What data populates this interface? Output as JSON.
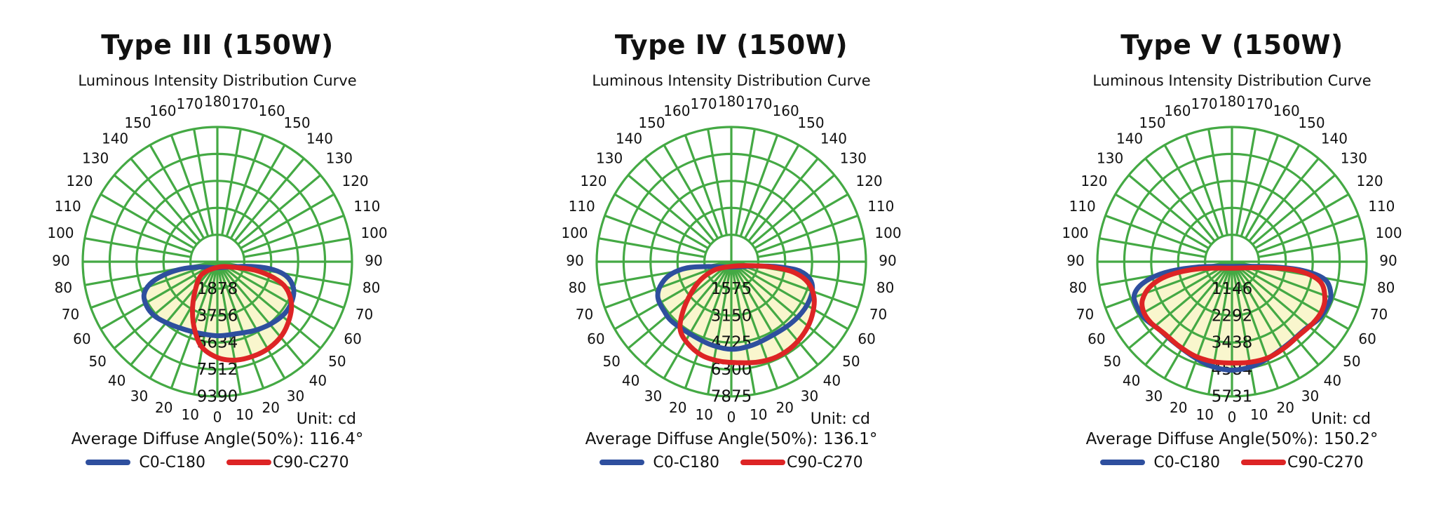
{
  "style": {
    "background": "#FFFFFF",
    "grid_color": "#44A944",
    "fill_color": "#F9F6CD",
    "text_color": "#111111",
    "blue": "#2E4F9E",
    "red": "#DD2425"
  },
  "angle_labels_deg": [
    0,
    10,
    20,
    30,
    40,
    50,
    60,
    70,
    80,
    90,
    100,
    110,
    120,
    130,
    140,
    150,
    160,
    170,
    180
  ],
  "ring_fractions": [
    0.2,
    0.4,
    0.6,
    0.8,
    1.0
  ],
  "chart_data": [
    {
      "type": "polar",
      "title": "Type III (150W)",
      "subtitle": "Luminous Intensity Distribution Curve",
      "unit_label": "Unit: cd",
      "avg_label": "Average Diffuse Angle(50%): 116.4°",
      "unit": "cd",
      "max_cd": 9390,
      "ring_values": [
        "1878",
        "3756",
        "5634",
        "7512",
        "9390"
      ],
      "series": [
        {
          "name": "C0-C180",
          "color": "#2E4F9E",
          "samples": {
            "angles_deg": [
              -90,
              -75,
              -60,
              -45,
              -30,
              -15,
              0,
              15,
              30,
              45,
              60,
              75,
              90
            ],
            "cd": [
              1100,
              5200,
              5600,
              5450,
              5300,
              5150,
              5150,
              5200,
              5350,
              5550,
              5750,
              5350,
              1100
            ]
          },
          "outline": [
            [
              0.0,
              0.045
            ],
            [
              -0.14,
              0.04
            ],
            [
              -0.27,
              0.055
            ],
            [
              -0.4,
              0.1
            ],
            [
              -0.5,
              0.165
            ],
            [
              -0.545,
              0.245
            ],
            [
              -0.525,
              0.33
            ],
            [
              -0.47,
              0.4
            ],
            [
              -0.385,
              0.45
            ],
            [
              -0.27,
              0.495
            ],
            [
              -0.14,
              0.53
            ],
            [
              0.0,
              0.55
            ],
            [
              0.14,
              0.535
            ],
            [
              0.28,
              0.51
            ],
            [
              0.4,
              0.46
            ],
            [
              0.5,
              0.385
            ],
            [
              0.555,
              0.29
            ],
            [
              0.565,
              0.195
            ],
            [
              0.51,
              0.105
            ],
            [
              0.39,
              0.052
            ],
            [
              0.24,
              0.035
            ],
            [
              0.11,
              0.038
            ]
          ]
        },
        {
          "name": "C90-C270",
          "color": "#DD2425",
          "samples": {
            "angles_deg": [
              -90,
              -75,
              -60,
              -45,
              -30,
              -15,
              0,
              15,
              30,
              45,
              60,
              75,
              90
            ],
            "cd": [
              380,
              850,
              1130,
              1970,
              3380,
              5160,
              6670,
              6950,
              6950,
              6570,
              5820,
              3380,
              560
            ]
          },
          "outline": [
            [
              0.01,
              0.04
            ],
            [
              -0.115,
              0.095
            ],
            [
              -0.165,
              0.215
            ],
            [
              -0.185,
              0.37
            ],
            [
              -0.165,
              0.52
            ],
            [
              -0.11,
              0.64
            ],
            [
              0.01,
              0.715
            ],
            [
              0.14,
              0.73
            ],
            [
              0.27,
              0.7
            ],
            [
              0.385,
              0.64
            ],
            [
              0.48,
              0.545
            ],
            [
              0.535,
              0.425
            ],
            [
              0.55,
              0.31
            ],
            [
              0.51,
              0.195
            ],
            [
              0.42,
              0.12
            ],
            [
              0.275,
              0.062
            ],
            [
              0.13,
              0.042
            ]
          ]
        }
      ]
    },
    {
      "type": "polar",
      "title": "Type IV (150W)",
      "subtitle": "Luminous Intensity Distribution Curve",
      "unit_label": "Unit: cd",
      "avg_label": "Average Diffuse Angle(50%): 136.1°",
      "unit": "cd",
      "max_cd": 7875,
      "ring_values": [
        "1575",
        "3150",
        "4725",
        "6300",
        "7875"
      ],
      "series": [
        {
          "name": "C0-C180",
          "color": "#2E4F9E",
          "samples": {
            "angles_deg": [
              -90,
              -75,
              -60,
              -45,
              -30,
              -15,
              0,
              15,
              30,
              45,
              60,
              75,
              90
            ],
            "cd": [
              790,
              4700,
              5040,
              4960,
              4880,
              4960,
              5120,
              4880,
              4880,
              4960,
              5040,
              4800,
              790
            ]
          },
          "outline": [
            [
              0.0,
              0.04
            ],
            [
              -0.17,
              0.036
            ],
            [
              -0.33,
              0.046
            ],
            [
              -0.46,
              0.1
            ],
            [
              -0.53,
              0.185
            ],
            [
              -0.545,
              0.27
            ],
            [
              -0.5,
              0.365
            ],
            [
              -0.44,
              0.445
            ],
            [
              -0.3,
              0.54
            ],
            [
              -0.155,
              0.615
            ],
            [
              0.0,
              0.65
            ],
            [
              0.155,
              0.62
            ],
            [
              0.3,
              0.55
            ],
            [
              0.44,
              0.46
            ],
            [
              0.545,
              0.35
            ],
            [
              0.6,
              0.225
            ],
            [
              0.585,
              0.13
            ],
            [
              0.5,
              0.066
            ],
            [
              0.35,
              0.038
            ],
            [
              0.17,
              0.032
            ]
          ]
        },
        {
          "name": "C90-C270",
          "color": "#DD2425",
          "samples": {
            "angles_deg": [
              -90,
              -75,
              -60,
              -45,
              -30,
              -15,
              0,
              15,
              30,
              45,
              60,
              75,
              90
            ],
            "cd": [
              320,
              950,
              1970,
              3540,
              4880,
              5750,
              5670,
              6140,
              6220,
              6060,
              5430,
              4330,
              550
            ]
          },
          "outline": [
            [
              0.0,
              0.035
            ],
            [
              -0.125,
              0.062
            ],
            [
              -0.225,
              0.132
            ],
            [
              -0.3,
              0.235
            ],
            [
              -0.36,
              0.37
            ],
            [
              -0.38,
              0.5
            ],
            [
              -0.33,
              0.6
            ],
            [
              -0.22,
              0.695
            ],
            [
              -0.08,
              0.74
            ],
            [
              0.06,
              0.75
            ],
            [
              0.2,
              0.745
            ],
            [
              0.34,
              0.705
            ],
            [
              0.46,
              0.625
            ],
            [
              0.55,
              0.515
            ],
            [
              0.6,
              0.4
            ],
            [
              0.615,
              0.27
            ],
            [
              0.57,
              0.155
            ],
            [
              0.47,
              0.082
            ],
            [
              0.33,
              0.044
            ],
            [
              0.16,
              0.03
            ]
          ]
        }
      ]
    },
    {
      "type": "polar",
      "title": "Type V (150W)",
      "subtitle": "Luminous Intensity Distribution Curve",
      "unit_label": "Unit: cd",
      "avg_label": "Average Diffuse Angle(50%): 150.2°",
      "unit": "cd",
      "max_cd": 5731,
      "ring_values": [
        "1146",
        "2292",
        "3438",
        "4584",
        "5731"
      ],
      "series": [
        {
          "name": "C0-C180",
          "color": "#2E4F9E",
          "samples": {
            "angles_deg": [
              -90,
              -75,
              -60,
              -45,
              -30,
              -15,
              0,
              15,
              30,
              45,
              60,
              75,
              90
            ],
            "cd": [
              570,
              4300,
              4240,
              4300,
              4410,
              4530,
              4610,
              4530,
              4410,
              4300,
              4240,
              4300,
              570
            ]
          },
          "outline": [
            [
              0.0,
              0.035
            ],
            [
              -0.26,
              0.04
            ],
            [
              -0.5,
              0.082
            ],
            [
              -0.655,
              0.155
            ],
            [
              -0.725,
              0.245
            ],
            [
              -0.705,
              0.335
            ],
            [
              -0.645,
              0.425
            ],
            [
              -0.545,
              0.5
            ],
            [
              -0.43,
              0.6
            ],
            [
              -0.295,
              0.7
            ],
            [
              -0.155,
              0.775
            ],
            [
              0.0,
              0.805
            ],
            [
              0.155,
              0.775
            ],
            [
              0.295,
              0.7
            ],
            [
              0.43,
              0.6
            ],
            [
              0.545,
              0.5
            ],
            [
              0.645,
              0.425
            ],
            [
              0.705,
              0.335
            ],
            [
              0.735,
              0.245
            ],
            [
              0.69,
              0.132
            ],
            [
              0.52,
              0.064
            ],
            [
              0.29,
              0.038
            ]
          ]
        },
        {
          "name": "C90-C270",
          "color": "#DD2425",
          "samples": {
            "angles_deg": [
              -90,
              -75,
              -60,
              -45,
              -30,
              -15,
              0,
              15,
              30,
              45,
              60,
              75,
              90
            ],
            "cd": [
              400,
              3440,
              4180,
              4360,
              4300,
              4300,
              4330,
              4300,
              4300,
              4360,
              4180,
              3440,
              400
            ]
          },
          "outline": [
            [
              0.0,
              0.048
            ],
            [
              -0.24,
              0.052
            ],
            [
              -0.46,
              0.098
            ],
            [
              -0.6,
              0.178
            ],
            [
              -0.665,
              0.285
            ],
            [
              -0.655,
              0.375
            ],
            [
              -0.6,
              0.455
            ],
            [
              -0.5,
              0.535
            ],
            [
              -0.395,
              0.625
            ],
            [
              -0.275,
              0.7
            ],
            [
              -0.14,
              0.742
            ],
            [
              0.0,
              0.752
            ],
            [
              0.145,
              0.745
            ],
            [
              0.28,
              0.708
            ],
            [
              0.4,
              0.632
            ],
            [
              0.5,
              0.545
            ],
            [
              0.6,
              0.458
            ],
            [
              0.665,
              0.37
            ],
            [
              0.69,
              0.272
            ],
            [
              0.655,
              0.148
            ],
            [
              0.5,
              0.07
            ],
            [
              0.28,
              0.045
            ]
          ]
        }
      ]
    }
  ]
}
